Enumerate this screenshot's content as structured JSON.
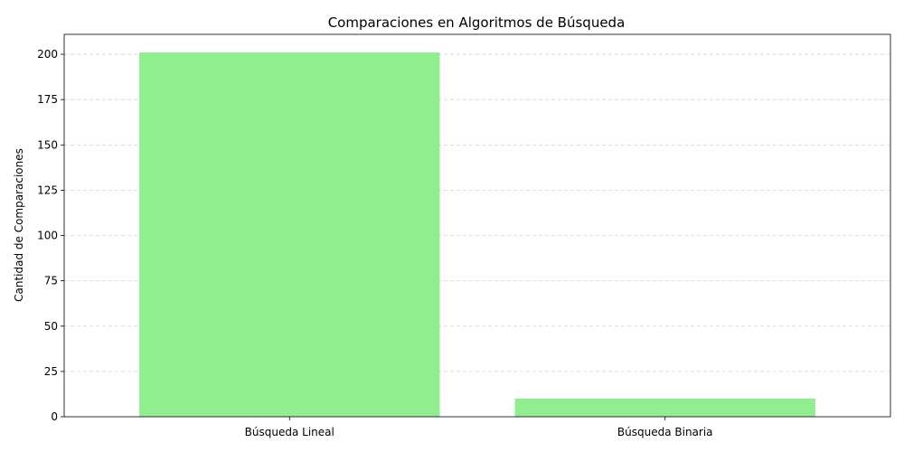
{
  "chart_data": {
    "type": "bar",
    "title": "Comparaciones en Algoritmos de Búsqueda",
    "xlabel": "",
    "ylabel": "Cantidad de Comparaciones",
    "categories": [
      "Búsqueda Lineal",
      "Búsqueda Binaria"
    ],
    "values": [
      201,
      10
    ],
    "ylim": [
      0,
      211
    ],
    "yticks": [
      0,
      25,
      50,
      75,
      100,
      125,
      150,
      175,
      200
    ],
    "grid": "y-dashed",
    "bar_color": "#90ee90"
  }
}
